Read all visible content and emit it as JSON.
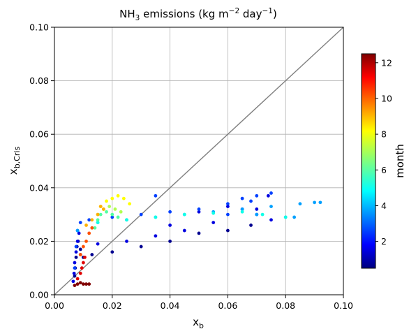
{
  "chart_data": {
    "type": "scatter",
    "title": "NH₃ emissions (kg m⁻² day⁻¹)",
    "xlabel": "x_b",
    "ylabel": "x_b,Cris",
    "x_label": {
      "base": "x",
      "sub": "b"
    },
    "y_label": {
      "base": "x",
      "sub": "b,Cris"
    },
    "xlim": [
      0.0,
      0.1
    ],
    "ylim": [
      0.0,
      0.1
    ],
    "x_ticks": [
      "0.00",
      "0.02",
      "0.04",
      "0.06",
      "0.08",
      "0.10"
    ],
    "y_ticks": [
      "0.00",
      "0.02",
      "0.04",
      "0.06",
      "0.08",
      "0.10"
    ],
    "grid": true,
    "reference_line": {
      "type": "1:1",
      "color": "#808080"
    },
    "colorbar": {
      "label": "month",
      "range": [
        0.5,
        12.5
      ],
      "ticks": [
        "2",
        "4",
        "6",
        "8",
        "10",
        "12"
      ],
      "colormap": "jet"
    },
    "series": [
      {
        "month": 1,
        "color": "#000090",
        "points": [
          [
            0.007,
            0.007
          ],
          [
            0.0072,
            0.01
          ],
          [
            0.0075,
            0.014
          ],
          [
            0.0078,
            0.018
          ],
          [
            0.0082,
            0.02
          ],
          [
            0.009,
            0.017
          ],
          [
            0.01,
            0.014
          ],
          [
            0.013,
            0.015
          ],
          [
            0.02,
            0.016
          ],
          [
            0.03,
            0.018
          ],
          [
            0.04,
            0.02
          ],
          [
            0.05,
            0.023
          ],
          [
            0.06,
            0.024
          ],
          [
            0.068,
            0.026
          ]
        ]
      },
      {
        "month": 2,
        "color": "#0000e0",
        "points": [
          [
            0.0065,
            0.005
          ],
          [
            0.0068,
            0.008
          ],
          [
            0.007,
            0.012
          ],
          [
            0.0075,
            0.016
          ],
          [
            0.008,
            0.02
          ],
          [
            0.0085,
            0.023
          ],
          [
            0.009,
            0.015
          ],
          [
            0.015,
            0.019
          ],
          [
            0.025,
            0.02
          ],
          [
            0.035,
            0.022
          ],
          [
            0.045,
            0.024
          ],
          [
            0.055,
            0.027
          ],
          [
            0.065,
            0.032
          ],
          [
            0.07,
            0.03
          ],
          [
            0.074,
            0.037
          ],
          [
            0.05,
            0.031
          ],
          [
            0.04,
            0.026
          ],
          [
            0.06,
            0.033
          ],
          [
            0.07,
            0.032
          ],
          [
            0.075,
            0.028
          ]
        ]
      },
      {
        "month": 3,
        "color": "#0040ff",
        "points": [
          [
            0.007,
            0.01
          ],
          [
            0.0075,
            0.018
          ],
          [
            0.008,
            0.024
          ],
          [
            0.009,
            0.027
          ],
          [
            0.012,
            0.028
          ],
          [
            0.02,
            0.029
          ],
          [
            0.03,
            0.03
          ],
          [
            0.04,
            0.031
          ],
          [
            0.05,
            0.032
          ],
          [
            0.06,
            0.034
          ],
          [
            0.065,
            0.036
          ],
          [
            0.07,
            0.037
          ],
          [
            0.075,
            0.038
          ],
          [
            0.035,
            0.037
          ],
          [
            0.06,
            0.03
          ],
          [
            0.068,
            0.035
          ]
        ]
      },
      {
        "month": 4,
        "color": "#00a0ff",
        "points": [
          [
            0.008,
            0.024
          ],
          [
            0.015,
            0.027
          ],
          [
            0.025,
            0.028
          ],
          [
            0.035,
            0.029
          ],
          [
            0.045,
            0.03
          ],
          [
            0.055,
            0.031
          ],
          [
            0.065,
            0.032
          ],
          [
            0.075,
            0.033
          ],
          [
            0.085,
            0.034
          ],
          [
            0.09,
            0.0345
          ],
          [
            0.092,
            0.0345
          ],
          [
            0.07,
            0.03
          ],
          [
            0.08,
            0.029
          ],
          [
            0.083,
            0.029
          ]
        ]
      },
      {
        "month": 5,
        "color": "#10ffe8",
        "points": [
          [
            0.015,
            0.027
          ],
          [
            0.025,
            0.028
          ],
          [
            0.035,
            0.029
          ],
          [
            0.045,
            0.03
          ],
          [
            0.055,
            0.0305
          ],
          [
            0.065,
            0.031
          ],
          [
            0.072,
            0.03
          ],
          [
            0.08,
            0.029
          ]
        ]
      },
      {
        "month": 6,
        "color": "#50ffa0",
        "points": [
          [
            0.014,
            0.025
          ],
          [
            0.015,
            0.028
          ],
          [
            0.016,
            0.03
          ],
          [
            0.018,
            0.031
          ],
          [
            0.02,
            0.03
          ],
          [
            0.022,
            0.029
          ]
        ]
      },
      {
        "month": 7,
        "color": "#b0ff50",
        "points": [
          [
            0.015,
            0.03
          ],
          [
            0.017,
            0.032
          ],
          [
            0.019,
            0.033
          ],
          [
            0.021,
            0.032
          ],
          [
            0.023,
            0.031
          ]
        ]
      },
      {
        "month": 8,
        "color": "#ffff00",
        "points": [
          [
            0.016,
            0.033
          ],
          [
            0.018,
            0.035
          ],
          [
            0.02,
            0.036
          ],
          [
            0.022,
            0.037
          ],
          [
            0.024,
            0.036
          ],
          [
            0.026,
            0.034
          ]
        ]
      },
      {
        "month": 9,
        "color": "#ffb000",
        "points": [
          [
            0.011,
            0.026
          ],
          [
            0.013,
            0.028
          ],
          [
            0.015,
            0.03
          ],
          [
            0.017,
            0.032
          ],
          [
            0.016,
            0.033
          ]
        ]
      },
      {
        "month": 10,
        "color": "#ff5000",
        "points": [
          [
            0.009,
            0.015
          ],
          [
            0.01,
            0.018
          ],
          [
            0.011,
            0.02
          ],
          [
            0.012,
            0.023
          ],
          [
            0.013,
            0.025
          ]
        ]
      },
      {
        "month": 11,
        "color": "#e00000",
        "points": [
          [
            0.008,
            0.006
          ],
          [
            0.009,
            0.008
          ],
          [
            0.0095,
            0.01
          ],
          [
            0.01,
            0.012
          ],
          [
            0.0105,
            0.014
          ]
        ]
      },
      {
        "month": 12,
        "color": "#800000",
        "points": [
          [
            0.007,
            0.0035
          ],
          [
            0.008,
            0.004
          ],
          [
            0.009,
            0.0045
          ],
          [
            0.01,
            0.004
          ],
          [
            0.011,
            0.004
          ],
          [
            0.012,
            0.004
          ]
        ]
      }
    ]
  }
}
